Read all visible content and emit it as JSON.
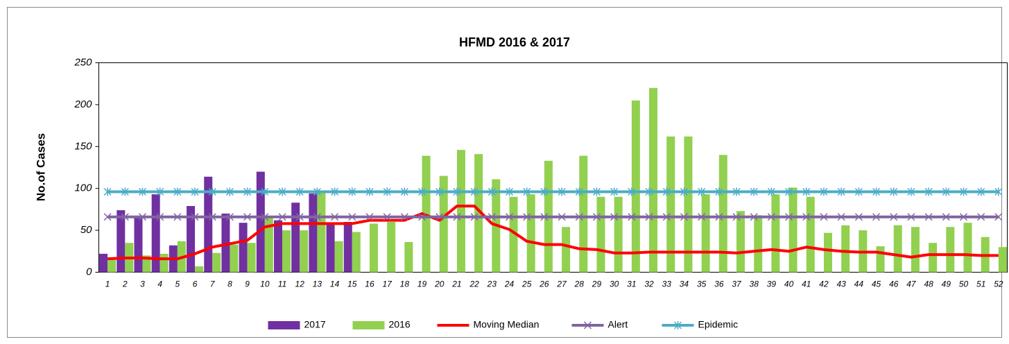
{
  "chart_data": {
    "type": "bar",
    "title": "HFMD 2016 & 2017",
    "y_label": "No.of Cases",
    "categories": [
      "1",
      "2",
      "3",
      "4",
      "5",
      "6",
      "7",
      "8",
      "9",
      "10",
      "11",
      "12",
      "13",
      "14",
      "15",
      "16",
      "17",
      "18",
      "19",
      "20",
      "21",
      "22",
      "23",
      "24",
      "25",
      "26",
      "27",
      "28",
      "29",
      "30",
      "31",
      "32",
      "33",
      "34",
      "35",
      "36",
      "37",
      "38",
      "39",
      "40",
      "41",
      "42",
      "43",
      "44",
      "45",
      "46",
      "47",
      "48",
      "49",
      "50",
      "51",
      "52"
    ],
    "ylim": [
      0,
      250
    ],
    "yticks": [
      0,
      50,
      100,
      150,
      200,
      250
    ],
    "grid": false,
    "legend": "bottom",
    "series": [
      {
        "name": "2017",
        "type": "bar",
        "color": "#7030a0",
        "values": [
          22,
          74,
          67,
          93,
          32,
          79,
          114,
          70,
          59,
          120,
          62,
          83,
          94,
          57,
          60,
          null,
          null,
          null,
          null,
          null,
          null,
          null,
          null,
          null,
          null,
          null,
          null,
          null,
          null,
          null,
          null,
          null,
          null,
          null,
          null,
          null,
          null,
          null,
          null,
          null,
          null,
          null,
          null,
          null,
          null,
          null,
          null,
          null,
          null,
          null,
          null,
          null
        ]
      },
      {
        "name": "2016",
        "type": "bar",
        "color": "#92d050",
        "values": [
          15,
          35,
          20,
          22,
          37,
          7,
          23,
          33,
          35,
          65,
          50,
          50,
          95,
          37,
          48,
          58,
          60,
          36,
          139,
          115,
          146,
          141,
          111,
          90,
          93,
          133,
          54,
          139,
          90,
          90,
          205,
          220,
          162,
          162,
          93,
          140,
          73,
          68,
          93,
          101,
          90,
          47,
          56,
          50,
          31,
          56,
          54,
          35,
          54,
          59,
          42,
          30
        ]
      },
      {
        "name": "Moving Median",
        "type": "line",
        "color": "#ff0000",
        "values": [
          16,
          17,
          17,
          16,
          16,
          22,
          30,
          34,
          38,
          54,
          58,
          58,
          58,
          58,
          58,
          62,
          62,
          62,
          70,
          62,
          79,
          79,
          58,
          51,
          37,
          33,
          33,
          28,
          27,
          23,
          23,
          24,
          24,
          24,
          24,
          24,
          23,
          25,
          27,
          25,
          30,
          27,
          25,
          24,
          24,
          21,
          18,
          21,
          21,
          21,
          20,
          20
        ]
      },
      {
        "name": "Alert",
        "type": "line",
        "marker": "x",
        "color": "#8064a2",
        "values": [
          66,
          66,
          66,
          66,
          66,
          66,
          66,
          66,
          66,
          66,
          66,
          66,
          66,
          66,
          66,
          66,
          66,
          66,
          66,
          66,
          66,
          66,
          66,
          66,
          66,
          66,
          66,
          66,
          66,
          66,
          66,
          66,
          66,
          66,
          66,
          66,
          66,
          66,
          66,
          66,
          66,
          66,
          66,
          66,
          66,
          66,
          66,
          66,
          66,
          66,
          66,
          66
        ]
      },
      {
        "name": "Epidemic",
        "type": "line",
        "marker": "asterisk",
        "color": "#4bacc6",
        "values": [
          96,
          96,
          96,
          96,
          96,
          96,
          96,
          96,
          96,
          96,
          96,
          96,
          96,
          96,
          96,
          96,
          96,
          96,
          96,
          96,
          96,
          96,
          96,
          96,
          96,
          96,
          96,
          96,
          96,
          96,
          96,
          96,
          96,
          96,
          96,
          96,
          96,
          96,
          96,
          96,
          96,
          96,
          96,
          96,
          96,
          96,
          96,
          96,
          96,
          96,
          96,
          96
        ]
      }
    ]
  }
}
